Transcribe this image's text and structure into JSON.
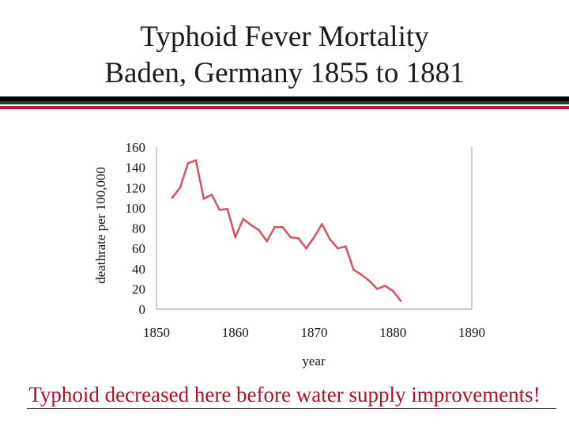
{
  "slide": {
    "title_line1": "Typhoid Fever Mortality",
    "title_line2": "Baden, Germany 1855 to 1881",
    "caption": "Typhoid decreased here before water supply improvements!"
  },
  "colors": {
    "line": "#d9515f",
    "caption": "#b01027",
    "rule_black": "#000000",
    "rule_green": "#1b4a28",
    "rule_red": "#b41e3c"
  },
  "chart_data": {
    "type": "line",
    "title": "",
    "xlabel": "year",
    "ylabel": "deathrate per 100,000",
    "xlim": [
      1850,
      1890
    ],
    "ylim": [
      0,
      160
    ],
    "x_ticks": [
      1850,
      1860,
      1870,
      1880,
      1890
    ],
    "y_ticks": [
      0,
      20,
      40,
      60,
      80,
      100,
      120,
      140,
      160
    ],
    "grid": false,
    "series": [
      {
        "x": [
          1852,
          1853,
          1854,
          1855,
          1856,
          1857,
          1858,
          1859,
          1860,
          1861,
          1862,
          1863,
          1864,
          1865,
          1866,
          1867,
          1868,
          1869,
          1870,
          1871,
          1872,
          1873,
          1874,
          1875,
          1876,
          1877,
          1878,
          1879,
          1880,
          1881
        ],
        "y": [
          110,
          120,
          144,
          147,
          109,
          113,
          98,
          99,
          71,
          89,
          83,
          78,
          67,
          81,
          81,
          71,
          70,
          60,
          71,
          84,
          69,
          60,
          62,
          39,
          34,
          28,
          20,
          23,
          18,
          8
        ]
      }
    ]
  }
}
